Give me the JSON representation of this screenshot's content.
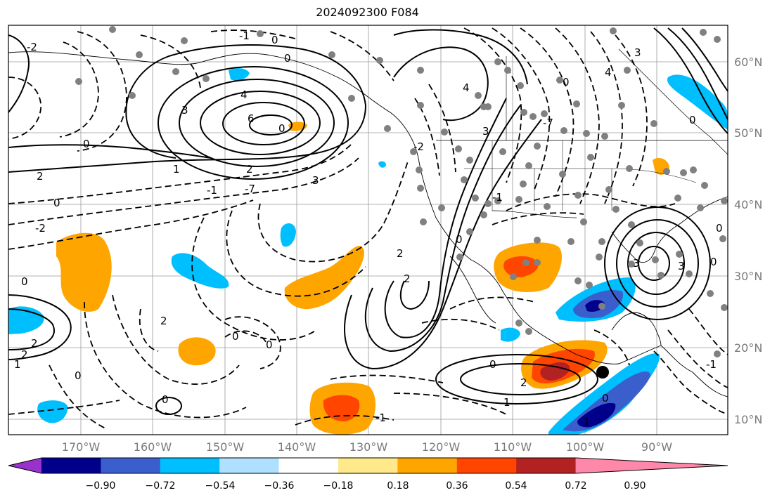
{
  "title": "2024092300 F084",
  "lon_ticks": [
    "170°W",
    "160°W",
    "150°W",
    "140°W",
    "130°W",
    "120°W",
    "110°W",
    "100°W",
    "90°W"
  ],
  "lat_ticks": [
    "60°N",
    "50°N",
    "40°N",
    "30°N",
    "20°N",
    "10°N"
  ],
  "colorbar": {
    "labels": [
      "−0.90",
      "−0.72",
      "−0.54",
      "−0.36",
      "−0.18",
      "0.18",
      "0.36",
      "0.54",
      "0.72",
      "0.90"
    ],
    "colors": [
      "#9932cc",
      "#00008b",
      "#3a5fcd",
      "#00bfff",
      "#b0e0ff",
      "#ffffff",
      "#ffe98a",
      "#ffa500",
      "#ff4500",
      "#b22222",
      "#ff88aa"
    ]
  },
  "colors": {
    "warm_light": "#ffa500",
    "warm_mid": "#ff4500",
    "warm_dark": "#b22222",
    "cool_light": "#00bfff",
    "cool_mid": "#3a5fcd",
    "cool_dark": "#00008b",
    "station": "#808080"
  },
  "contour_labels": [
    "-2",
    "-1",
    "0",
    "1",
    "2",
    "3",
    "4",
    "6",
    "-7",
    "7"
  ],
  "marker": "black-dot"
}
